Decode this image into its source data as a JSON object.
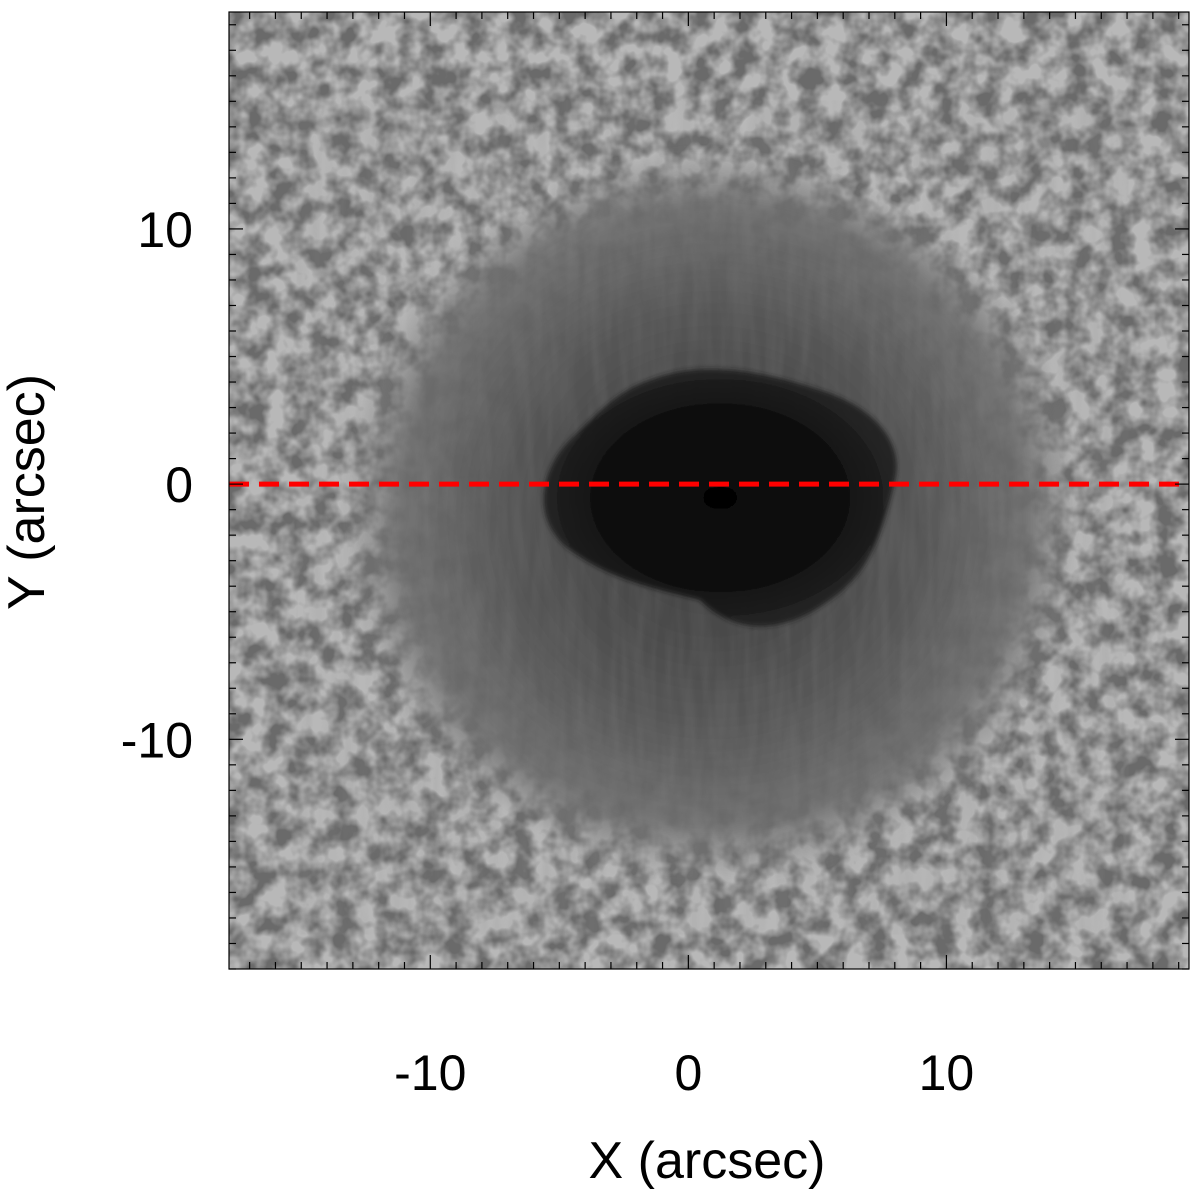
{
  "figure": {
    "xlabel": "X (arcsec)",
    "ylabel": "Y (arcsec)",
    "xlim": [
      -17.8,
      19.4
    ],
    "ylim": [
      -19.0,
      18.5
    ],
    "x_ticks": [
      {
        "value": -10,
        "label": "-10"
      },
      {
        "value": 0,
        "label": "0"
      },
      {
        "value": 10,
        "label": "10"
      }
    ],
    "y_ticks": [
      {
        "value": 10,
        "label": "10"
      },
      {
        "value": 0,
        "label": "0"
      },
      {
        "value": -10,
        "label": "-10"
      }
    ],
    "minor_tick_step": 1,
    "cut_line": {
      "y": 0,
      "color": "#ff0000",
      "style": "dashed"
    },
    "image": {
      "subject": "sunspot with dark umbra, filamentary penumbra and surrounding granulation",
      "colormap": "grayscale"
    }
  }
}
